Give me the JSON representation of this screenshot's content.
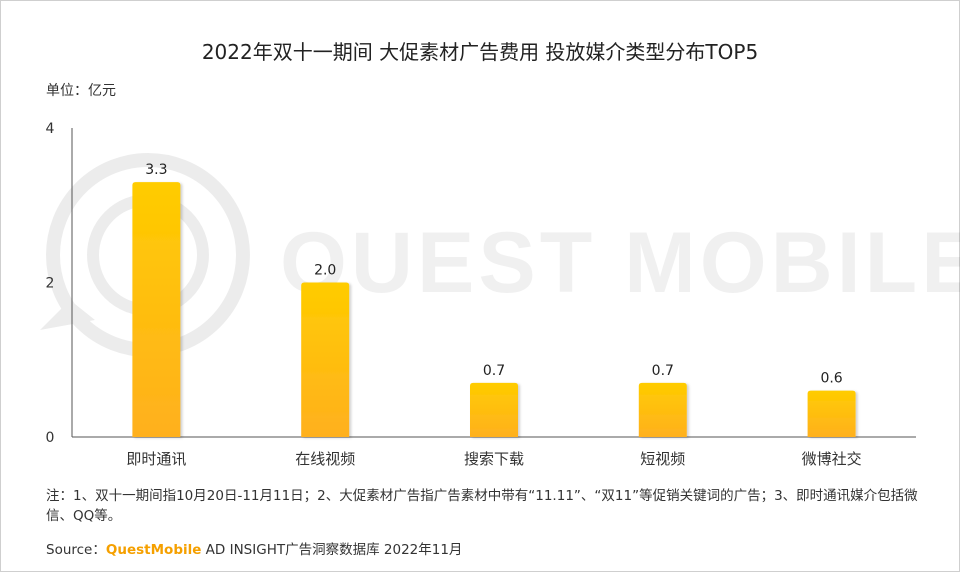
{
  "chart_data": {
    "type": "bar",
    "title": "2022年双十一期间 大促素材广告费用 投放媒介类型分布TOP5",
    "unit_label": "单位：亿元",
    "categories": [
      "即时通讯",
      "在线视频",
      "搜索下载",
      "短视频",
      "微博社交"
    ],
    "values": [
      3.3,
      2.0,
      0.7,
      0.7,
      0.6
    ],
    "data_labels": [
      "3.3",
      "2.0",
      "0.7",
      "0.7",
      "0.6"
    ],
    "y_ticks": [
      "0",
      "2",
      "4"
    ],
    "ylim": [
      0,
      4
    ],
    "grid": false,
    "bar_color_top": "#ffcc00",
    "bar_color_bottom": "#ffb01e"
  },
  "watermark": "QUEST MOBILE",
  "note": "注：1、双十一期间指10月20日-11月11日；2、大促素材广告指广告素材中带有“11.11”、“双11”等促销关键词的广告；3、即时通讯媒介包括微信、QQ等。",
  "source": {
    "prefix": "Source：",
    "brand": "QuestMobile",
    "text": " AD INSIGHT广告洞察数据库 2022年11月"
  }
}
